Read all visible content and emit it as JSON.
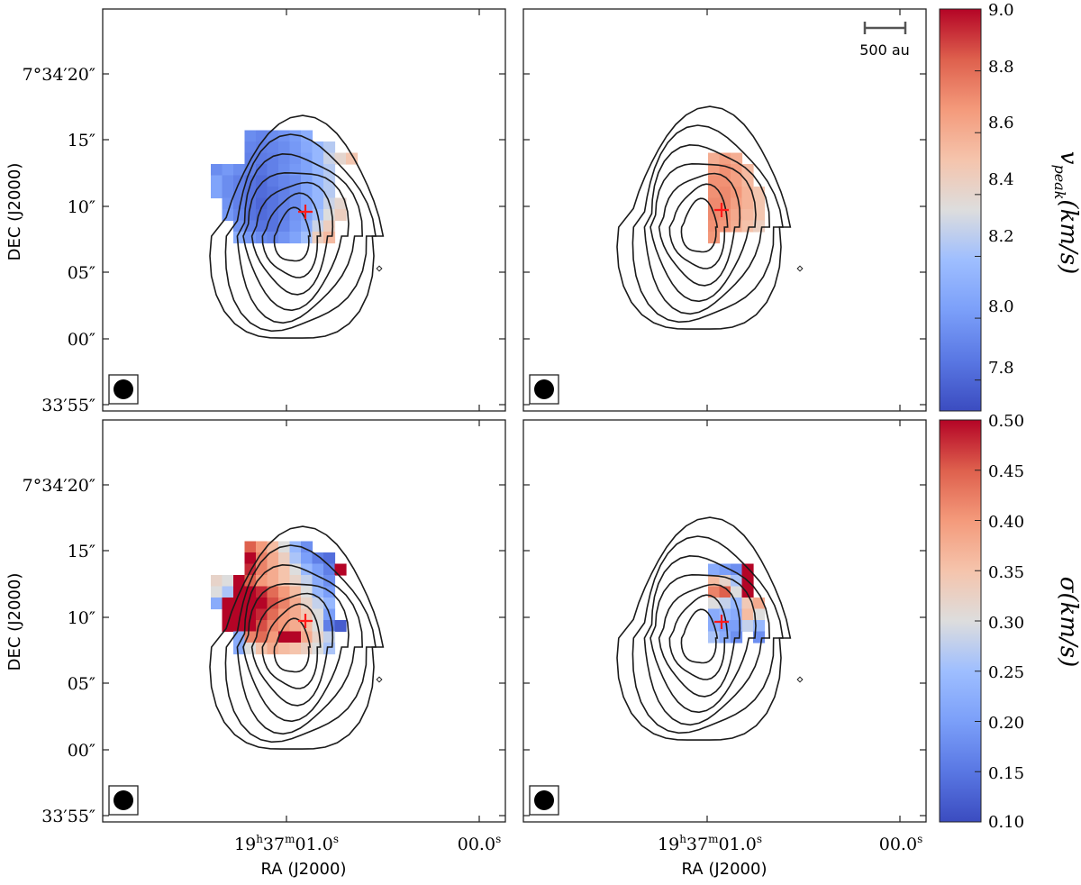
{
  "chart_data": [
    {
      "type": "heatmap",
      "panel": "top-left",
      "colorbar": "vpeak",
      "ylabel": "DEC (J2000)",
      "ytick_labels": [
        "7°34′20″",
        "15″",
        "10″",
        "05″",
        "00″",
        "33′55″"
      ],
      "xtick_labels": [],
      "values": [
        [
          null,
          null,
          null,
          null,
          null,
          null,
          null,
          null,
          null,
          null,
          null,
          null,
          null,
          null,
          null,
          null
        ],
        [
          null,
          null,
          null,
          null,
          null,
          7.95,
          7.92,
          7.95,
          7.98,
          8.02,
          8.1,
          null,
          null,
          null,
          null,
          null
        ],
        [
          null,
          null,
          null,
          null,
          null,
          7.92,
          7.9,
          7.92,
          7.95,
          8.0,
          8.08,
          8.15,
          8.25,
          null,
          null,
          null
        ],
        [
          null,
          null,
          null,
          null,
          null,
          7.9,
          7.88,
          7.9,
          7.94,
          7.98,
          8.05,
          8.15,
          8.3,
          8.4,
          8.5,
          null
        ],
        [
          null,
          null,
          7.95,
          8.0,
          7.95,
          7.9,
          7.85,
          7.9,
          7.95,
          8.0,
          8.05,
          8.15,
          8.25,
          null,
          null,
          null
        ],
        [
          null,
          null,
          8.05,
          7.95,
          7.9,
          7.85,
          7.82,
          7.88,
          7.92,
          7.95,
          8.05,
          8.15,
          8.25,
          null,
          null,
          null
        ],
        [
          null,
          null,
          8.05,
          7.95,
          7.9,
          7.85,
          7.82,
          7.85,
          7.9,
          7.95,
          8.05,
          8.15,
          8.25,
          null,
          null,
          null
        ],
        [
          null,
          null,
          null,
          7.98,
          7.9,
          7.85,
          7.8,
          7.85,
          7.9,
          7.95,
          8.05,
          8.15,
          8.3,
          8.4,
          null,
          null
        ],
        [
          null,
          null,
          null,
          8.0,
          7.92,
          7.85,
          7.82,
          7.85,
          7.9,
          7.98,
          8.05,
          8.2,
          8.35,
          8.45,
          null,
          null
        ],
        [
          null,
          null,
          null,
          null,
          7.98,
          7.9,
          7.85,
          7.85,
          7.92,
          8.0,
          8.1,
          8.3,
          8.45,
          null,
          null,
          null
        ],
        [
          null,
          null,
          null,
          null,
          8.1,
          8.0,
          7.95,
          7.92,
          7.98,
          8.05,
          8.2,
          8.45,
          8.55,
          null,
          null,
          null
        ]
      ],
      "peak_marker": "+"
    },
    {
      "type": "heatmap",
      "panel": "top-right",
      "colorbar": "vpeak",
      "scalebar_label": "500 au",
      "values": [
        [
          null,
          null,
          null,
          null,
          null
        ],
        [
          null,
          null,
          null,
          null,
          null
        ],
        [
          null,
          null,
          null,
          null,
          null
        ],
        [
          8.6,
          8.65,
          8.6,
          null,
          null
        ],
        [
          8.65,
          8.7,
          8.65,
          8.55,
          null
        ],
        [
          8.7,
          8.7,
          8.65,
          8.55,
          null
        ],
        [
          8.7,
          8.72,
          8.68,
          8.58,
          8.5
        ],
        [
          8.72,
          8.72,
          8.65,
          8.58,
          8.5
        ],
        [
          8.72,
          8.7,
          8.62,
          8.55,
          8.5
        ],
        [
          8.7,
          8.68,
          8.6,
          8.52,
          8.45
        ],
        [
          8.68,
          null,
          null,
          null,
          null
        ]
      ],
      "peak_marker": "+"
    },
    {
      "type": "heatmap",
      "panel": "bottom-left",
      "colorbar": "sigma",
      "ylabel": "DEC (J2000)",
      "xlabel": "RA (J2000)",
      "ytick_labels": [
        "7°34′20″",
        "15″",
        "10″",
        "05″",
        "00″",
        "33′55″"
      ],
      "xtick_labels": [
        "19h37m01.0s",
        "00.0s"
      ],
      "values": [
        [
          null,
          null,
          null,
          null,
          null,
          null,
          null,
          null,
          null,
          null,
          null,
          null,
          null,
          null,
          null,
          null
        ],
        [
          null,
          null,
          null,
          null,
          null,
          0.45,
          0.4,
          0.36,
          0.3,
          0.24,
          0.18,
          null,
          null,
          null,
          null,
          null
        ],
        [
          null,
          null,
          null,
          null,
          null,
          0.5,
          0.42,
          0.38,
          0.33,
          0.26,
          0.2,
          0.16,
          0.14,
          null,
          null,
          null
        ],
        [
          null,
          null,
          null,
          null,
          null,
          0.48,
          0.42,
          0.38,
          0.35,
          0.3,
          0.24,
          0.2,
          0.16,
          0.5,
          null,
          null
        ],
        [
          null,
          null,
          0.32,
          0.3,
          0.5,
          0.45,
          0.4,
          0.38,
          0.35,
          0.32,
          0.28,
          0.22,
          0.18,
          null,
          null,
          null
        ],
        [
          null,
          null,
          0.3,
          0.26,
          0.5,
          0.5,
          0.48,
          0.44,
          0.4,
          0.36,
          0.3,
          0.24,
          0.2,
          null,
          null,
          null
        ],
        [
          null,
          null,
          0.22,
          0.5,
          0.5,
          0.5,
          0.5,
          0.46,
          0.42,
          0.38,
          0.32,
          0.28,
          0.24,
          null,
          null,
          null
        ],
        [
          null,
          null,
          null,
          0.5,
          0.5,
          0.5,
          0.48,
          0.44,
          0.4,
          0.38,
          0.34,
          0.3,
          0.2,
          null,
          null,
          null
        ],
        [
          null,
          null,
          null,
          0.5,
          0.5,
          0.5,
          0.46,
          0.42,
          0.4,
          0.38,
          0.36,
          0.3,
          0.16,
          0.12,
          null,
          null
        ],
        [
          null,
          null,
          null,
          null,
          0.22,
          0.42,
          0.44,
          0.4,
          0.5,
          0.5,
          0.38,
          0.32,
          0.28,
          null,
          null,
          null
        ],
        [
          null,
          null,
          null,
          null,
          0.22,
          0.3,
          0.35,
          0.38,
          0.36,
          0.35,
          0.33,
          0.3,
          0.26,
          null,
          null,
          null
        ]
      ],
      "peak_marker": "+"
    },
    {
      "type": "heatmap",
      "panel": "bottom-right",
      "colorbar": "sigma",
      "xlabel": "RA (J2000)",
      "xtick_labels": [
        "19h37m01.0s",
        "00.0s"
      ],
      "values": [
        [
          null,
          null,
          null,
          null,
          null
        ],
        [
          null,
          null,
          null,
          null,
          null
        ],
        [
          null,
          null,
          null,
          null,
          null
        ],
        [
          0.22,
          0.2,
          0.18,
          0.5,
          null
        ],
        [
          0.36,
          0.32,
          0.26,
          0.5,
          null
        ],
        [
          0.42,
          0.45,
          0.3,
          0.5,
          null
        ],
        [
          0.3,
          0.28,
          0.24,
          0.34,
          0.38
        ],
        [
          0.22,
          0.24,
          0.22,
          0.36,
          0.3
        ],
        [
          0.22,
          0.2,
          0.2,
          0.28,
          0.24
        ],
        [
          0.26,
          0.22,
          0.18,
          null,
          0.18
        ],
        [
          null,
          null,
          null,
          null,
          null
        ]
      ],
      "peak_marker": "+"
    }
  ],
  "colorbars": {
    "vpeak": {
      "label": "v_peak(km/s)",
      "label_main": "v",
      "label_sub": "peak",
      "label_rest": "(km/s)",
      "range": [
        7.7,
        9.0
      ],
      "tick_labels": [
        "9.0",
        "8.8",
        "8.6",
        "8.4",
        "8.2",
        "8.0",
        "7.8"
      ],
      "colormap": "coolwarm"
    },
    "sigma": {
      "label": "σ(km/s)",
      "label_main": "σ",
      "label_rest": "(km/s)",
      "range": [
        0.1,
        0.5
      ],
      "tick_labels": [
        "0.50",
        "0.45",
        "0.40",
        "0.35",
        "0.30",
        "0.25",
        "0.20",
        "0.15",
        "0.10"
      ],
      "colormap": "coolwarm"
    }
  },
  "colors": {
    "contour": "#1a1a1a",
    "peak_marker": "#ff1a1a",
    "cold": "#3b4cc0",
    "neutral": "#dddddd",
    "warm": "#b40426"
  }
}
